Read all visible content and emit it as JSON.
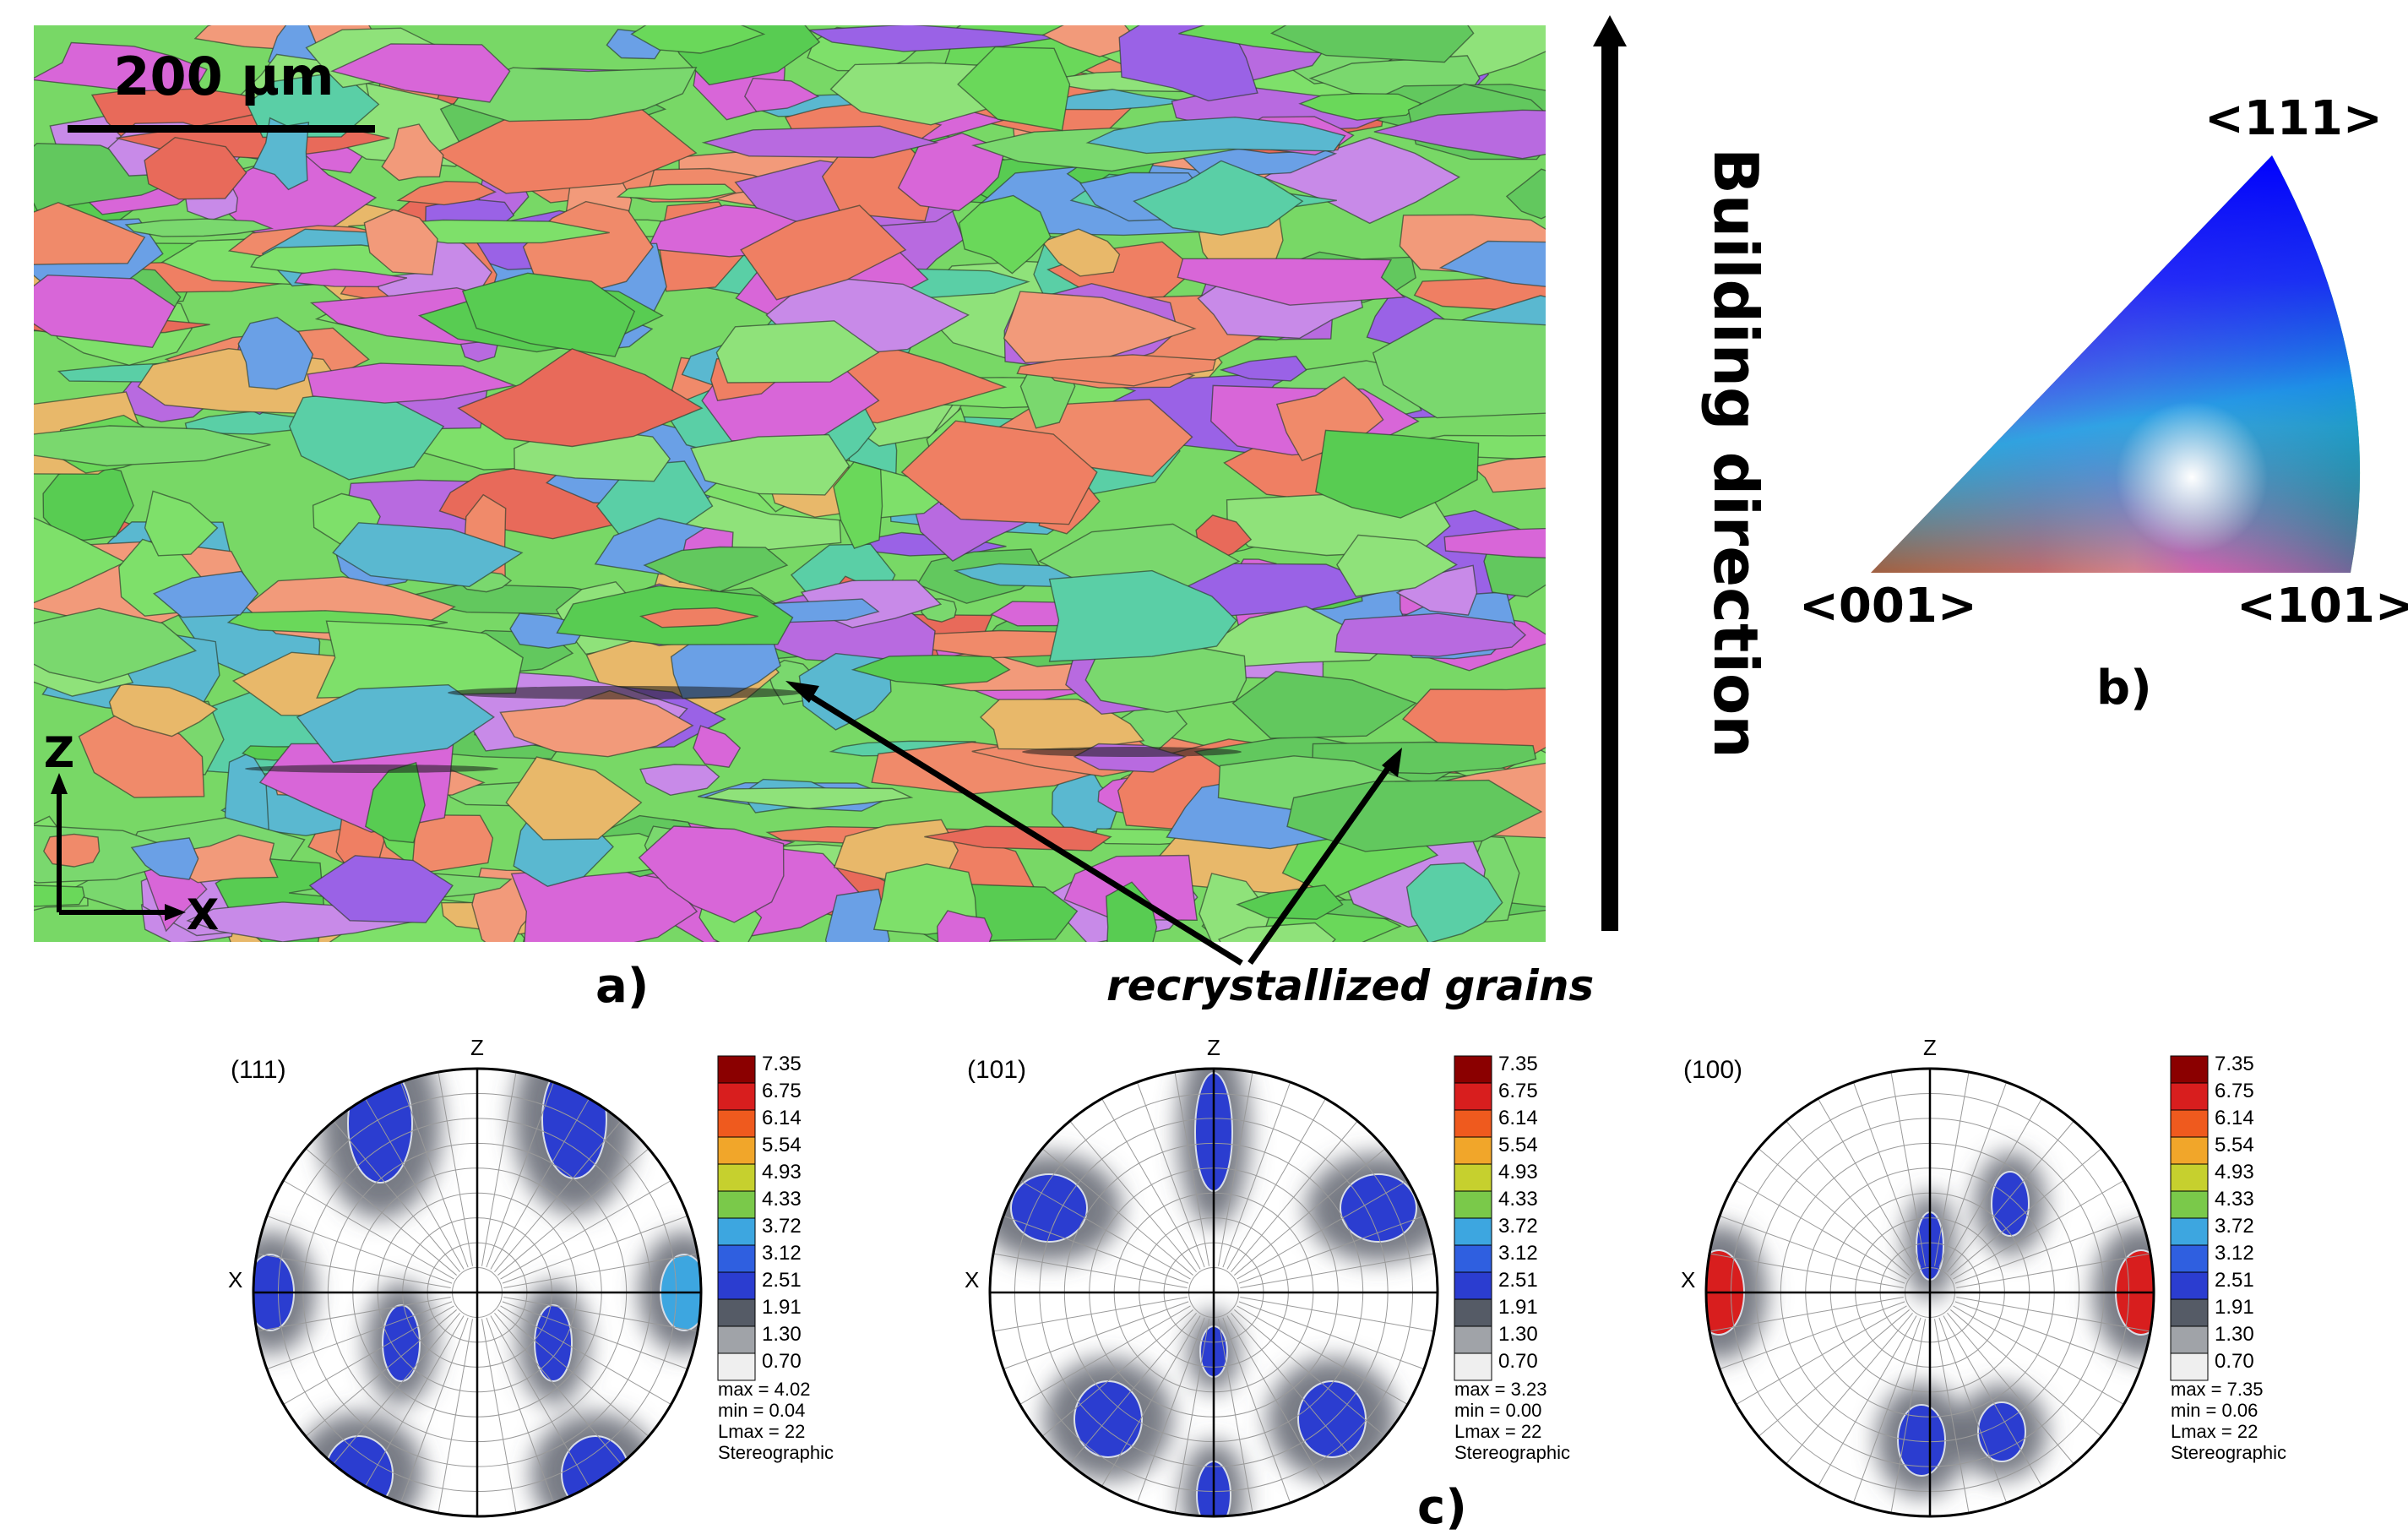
{
  "panel_a": {
    "scale_bar": "200 µm",
    "axis_z": "Z",
    "axis_x": "X",
    "label": "a)",
    "annotation": "recrystallized grains"
  },
  "building_direction": "Building direction",
  "panel_b": {
    "label": "b)",
    "corner_111": "<111>",
    "corner_001": "<001>",
    "corner_101": "<101>"
  },
  "panel_c": {
    "label": "c)",
    "legend_values": [
      "7.35",
      "6.75",
      "6.14",
      "5.54",
      "4.93",
      "4.33",
      "3.72",
      "3.12",
      "2.51",
      "1.91",
      "1.30",
      "0.70"
    ],
    "legend_colors": [
      "#8b0000",
      "#d81e1e",
      "#ef5a1e",
      "#f1a62a",
      "#c6d02e",
      "#7ac94a",
      "#3da6e0",
      "#2f5fe0",
      "#2b3dd0",
      "#555b66",
      "#a0a3a8",
      "#efefef"
    ],
    "pole_figures": [
      {
        "title": "(111)",
        "axis_top": "Z",
        "axis_left": "X",
        "max": "max = 4.02",
        "min": "min = 0.04",
        "lmax": "Lmax = 22",
        "projection": "Stereographic"
      },
      {
        "title": "(101)",
        "axis_top": "Z",
        "axis_left": "X",
        "max": "max = 3.23",
        "min": "min = 0.00",
        "lmax": "Lmax = 22",
        "projection": "Stereographic"
      },
      {
        "title": "(100)",
        "axis_top": "Z",
        "axis_left": "X",
        "max": "max = 7.35",
        "min": "min = 0.06",
        "lmax": "Lmax = 22",
        "projection": "Stereographic"
      }
    ]
  }
}
